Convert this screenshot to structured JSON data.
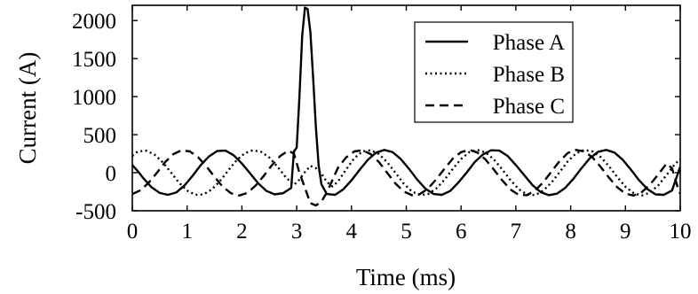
{
  "chart_data": {
    "type": "line",
    "xlabel": "Time (ms)",
    "ylabel": "Current (A)",
    "xlim": [
      0,
      10
    ],
    "ylim": [
      -500,
      2200
    ],
    "x_ticks": [
      0,
      1,
      2,
      3,
      4,
      5,
      6,
      7,
      8,
      9,
      10
    ],
    "y_ticks": [
      -500,
      0,
      500,
      1000,
      1500,
      2000
    ],
    "grid": false,
    "legend_position": "top-right",
    "series": [
      {
        "name": "Phase A",
        "line_style": "solid",
        "color": "#000000",
        "points": [
          [
            0,
            100
          ],
          [
            0.1,
            20
          ],
          [
            0.2,
            -70
          ],
          [
            0.35,
            -190
          ],
          [
            0.5,
            -265
          ],
          [
            0.65,
            -290
          ],
          [
            0.8,
            -260
          ],
          [
            0.95,
            -170
          ],
          [
            1.1,
            -40
          ],
          [
            1.25,
            100
          ],
          [
            1.4,
            215
          ],
          [
            1.55,
            285
          ],
          [
            1.7,
            290
          ],
          [
            1.85,
            230
          ],
          [
            2.0,
            120
          ],
          [
            2.15,
            -10
          ],
          [
            2.3,
            -140
          ],
          [
            2.45,
            -240
          ],
          [
            2.6,
            -285
          ],
          [
            2.75,
            -270
          ],
          [
            2.9,
            -200
          ],
          [
            2.95,
            280
          ],
          [
            3.0,
            330
          ],
          [
            3.05,
            1000
          ],
          [
            3.1,
            1800
          ],
          [
            3.15,
            2170
          ],
          [
            3.2,
            2150
          ],
          [
            3.25,
            1850
          ],
          [
            3.3,
            1250
          ],
          [
            3.35,
            600
          ],
          [
            3.4,
            100
          ],
          [
            3.45,
            -150
          ],
          [
            3.55,
            -280
          ],
          [
            3.7,
            -290
          ],
          [
            3.85,
            -220
          ],
          [
            4.0,
            -100
          ],
          [
            4.15,
            40
          ],
          [
            4.3,
            170
          ],
          [
            4.45,
            265
          ],
          [
            4.6,
            300
          ],
          [
            4.75,
            270
          ],
          [
            4.9,
            180
          ],
          [
            5.05,
            50
          ],
          [
            5.2,
            -90
          ],
          [
            5.35,
            -210
          ],
          [
            5.5,
            -280
          ],
          [
            5.65,
            -290
          ],
          [
            5.8,
            -240
          ],
          [
            5.95,
            -130
          ],
          [
            6.1,
            0
          ],
          [
            6.25,
            140
          ],
          [
            6.4,
            240
          ],
          [
            6.55,
            295
          ],
          [
            6.7,
            290
          ],
          [
            6.85,
            220
          ],
          [
            7.0,
            100
          ],
          [
            7.15,
            -30
          ],
          [
            7.3,
            -160
          ],
          [
            7.45,
            -255
          ],
          [
            7.6,
            -295
          ],
          [
            7.75,
            -275
          ],
          [
            7.9,
            -200
          ],
          [
            8.05,
            -80
          ],
          [
            8.2,
            60
          ],
          [
            8.35,
            190
          ],
          [
            8.5,
            275
          ],
          [
            8.65,
            300
          ],
          [
            8.8,
            265
          ],
          [
            8.95,
            170
          ],
          [
            9.1,
            40
          ],
          [
            9.25,
            -100
          ],
          [
            9.4,
            -215
          ],
          [
            9.55,
            -285
          ],
          [
            9.7,
            -290
          ],
          [
            9.85,
            -235
          ],
          [
            10.0,
            80
          ]
        ]
      },
      {
        "name": "Phase B",
        "line_style": "dotted",
        "color": "#000000",
        "points": [
          [
            0,
            220
          ],
          [
            0.1,
            280
          ],
          [
            0.25,
            290
          ],
          [
            0.4,
            240
          ],
          [
            0.55,
            140
          ],
          [
            0.7,
            10
          ],
          [
            0.85,
            -130
          ],
          [
            1.0,
            -235
          ],
          [
            1.15,
            -290
          ],
          [
            1.3,
            -285
          ],
          [
            1.45,
            -220
          ],
          [
            1.6,
            -110
          ],
          [
            1.75,
            30
          ],
          [
            1.9,
            160
          ],
          [
            2.05,
            255
          ],
          [
            2.2,
            295
          ],
          [
            2.35,
            275
          ],
          [
            2.5,
            200
          ],
          [
            2.65,
            80
          ],
          [
            2.8,
            -60
          ],
          [
            2.95,
            -160
          ],
          [
            3.05,
            -90
          ],
          [
            3.15,
            10
          ],
          [
            3.25,
            90
          ],
          [
            3.35,
            60
          ],
          [
            3.45,
            -10
          ],
          [
            3.55,
            -120
          ],
          [
            3.65,
            -180
          ],
          [
            3.75,
            -120
          ],
          [
            3.9,
            40
          ],
          [
            4.05,
            190
          ],
          [
            4.2,
            280
          ],
          [
            4.35,
            295
          ],
          [
            4.5,
            245
          ],
          [
            4.65,
            140
          ],
          [
            4.8,
            0
          ],
          [
            4.95,
            -140
          ],
          [
            5.1,
            -245
          ],
          [
            5.25,
            -295
          ],
          [
            5.4,
            -280
          ],
          [
            5.55,
            -205
          ],
          [
            5.7,
            -90
          ],
          [
            5.85,
            50
          ],
          [
            6.0,
            180
          ],
          [
            6.15,
            270
          ],
          [
            6.3,
            300
          ],
          [
            6.45,
            265
          ],
          [
            6.6,
            175
          ],
          [
            6.75,
            45
          ],
          [
            6.9,
            -95
          ],
          [
            7.05,
            -215
          ],
          [
            7.2,
            -285
          ],
          [
            7.35,
            -295
          ],
          [
            7.5,
            -235
          ],
          [
            7.65,
            -130
          ],
          [
            7.8,
            10
          ],
          [
            7.95,
            150
          ],
          [
            8.1,
            255
          ],
          [
            8.25,
            300
          ],
          [
            8.4,
            280
          ],
          [
            8.55,
            205
          ],
          [
            8.7,
            85
          ],
          [
            8.85,
            -55
          ],
          [
            9.0,
            -185
          ],
          [
            9.15,
            -270
          ],
          [
            9.3,
            -300
          ],
          [
            9.45,
            -260
          ],
          [
            9.6,
            -165
          ],
          [
            9.75,
            -30
          ],
          [
            9.9,
            110
          ],
          [
            10.0,
            180
          ]
        ]
      },
      {
        "name": "Phase C",
        "line_style": "dashed",
        "color": "#000000",
        "points": [
          [
            0,
            -280
          ],
          [
            0.15,
            -230
          ],
          [
            0.3,
            -130
          ],
          [
            0.45,
            0
          ],
          [
            0.6,
            140
          ],
          [
            0.75,
            245
          ],
          [
            0.9,
            295
          ],
          [
            1.05,
            280
          ],
          [
            1.2,
            205
          ],
          [
            1.35,
            85
          ],
          [
            1.5,
            -55
          ],
          [
            1.65,
            -185
          ],
          [
            1.8,
            -270
          ],
          [
            1.95,
            -300
          ],
          [
            2.1,
            -265
          ],
          [
            2.25,
            -170
          ],
          [
            2.4,
            -40
          ],
          [
            2.55,
            100
          ],
          [
            2.7,
            220
          ],
          [
            2.85,
            290
          ],
          [
            2.95,
            250
          ],
          [
            3.05,
            0
          ],
          [
            3.15,
            -200
          ],
          [
            3.25,
            -400
          ],
          [
            3.35,
            -430
          ],
          [
            3.45,
            -380
          ],
          [
            3.55,
            -260
          ],
          [
            3.65,
            -100
          ],
          [
            3.75,
            60
          ],
          [
            3.9,
            200
          ],
          [
            4.05,
            280
          ],
          [
            4.2,
            295
          ],
          [
            4.35,
            245
          ],
          [
            4.5,
            140
          ],
          [
            4.65,
            0
          ],
          [
            4.8,
            -140
          ],
          [
            4.95,
            -245
          ],
          [
            5.1,
            -295
          ],
          [
            5.25,
            -280
          ],
          [
            5.4,
            -205
          ],
          [
            5.55,
            -85
          ],
          [
            5.7,
            55
          ],
          [
            5.85,
            185
          ],
          [
            6.0,
            270
          ],
          [
            6.15,
            300
          ],
          [
            6.3,
            265
          ],
          [
            6.45,
            170
          ],
          [
            6.6,
            40
          ],
          [
            6.75,
            -100
          ],
          [
            6.9,
            -220
          ],
          [
            7.05,
            -290
          ],
          [
            7.2,
            -295
          ],
          [
            7.35,
            -235
          ],
          [
            7.5,
            -125
          ],
          [
            7.65,
            15
          ],
          [
            7.8,
            155
          ],
          [
            7.95,
            260
          ],
          [
            8.1,
            300
          ],
          [
            8.25,
            280
          ],
          [
            8.4,
            200
          ],
          [
            8.55,
            75
          ],
          [
            8.7,
            -65
          ],
          [
            8.85,
            -190
          ],
          [
            9.0,
            -275
          ],
          [
            9.15,
            -300
          ],
          [
            9.3,
            -255
          ],
          [
            9.45,
            -155
          ],
          [
            9.6,
            -20
          ],
          [
            9.75,
            120
          ],
          [
            9.85,
            60
          ],
          [
            9.95,
            -180
          ],
          [
            10.0,
            -280
          ]
        ]
      }
    ]
  }
}
